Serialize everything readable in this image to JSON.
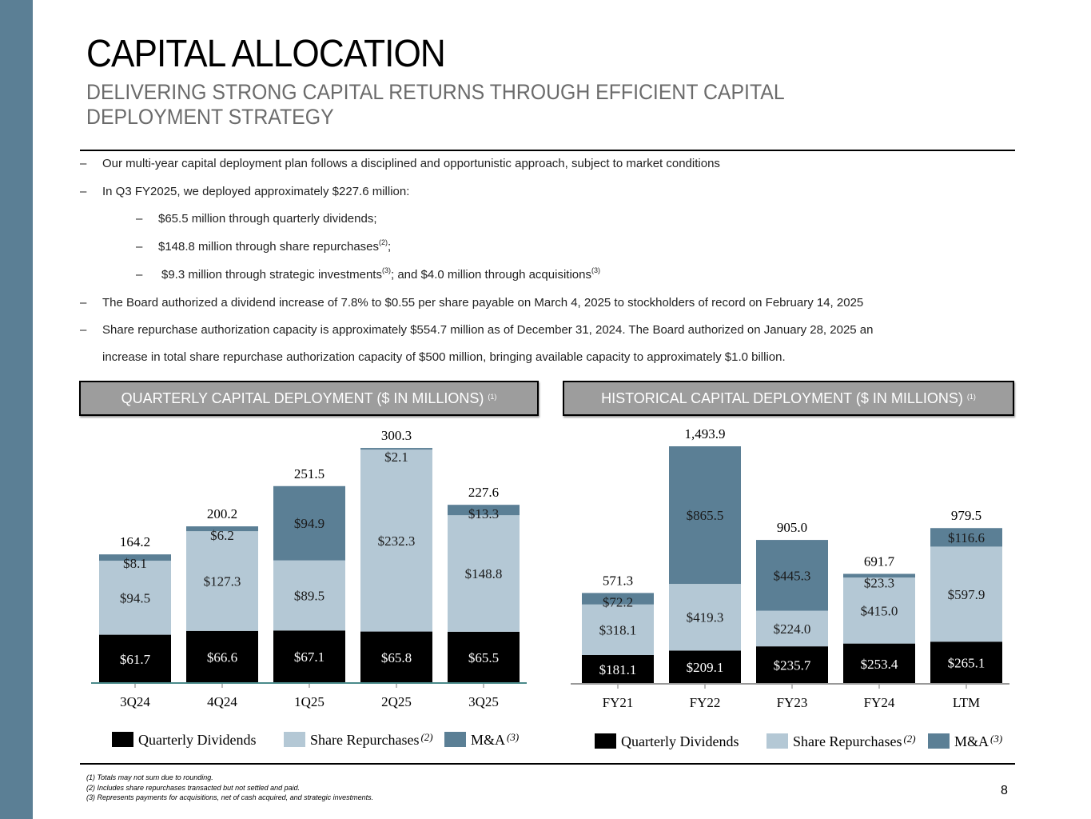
{
  "title": "CAPITAL ALLOCATION",
  "subtitle": "DELIVERING STRONG CAPITAL RETURNS THROUGH EFFICIENT CAPITAL DEPLOYMENT STRATEGY",
  "colors": {
    "sidebar": "#5b7f95",
    "dividends": "#000000",
    "repurchases": "#b4c8d5",
    "ma": "#5b7f95",
    "panel_header": "#9d9d9d"
  },
  "bullets": [
    {
      "dash": "–",
      "text": "Our multi-year capital deployment plan follows a disciplined and opportunistic approach, subject to market conditions"
    },
    {
      "dash": "–",
      "text": "In Q3 FY2025, we deployed approximately $227.6 million:"
    },
    {
      "dash": "–",
      "text": "$65.5 million through quarterly dividends;"
    },
    {
      "dash": "–",
      "text": "$148.8 million through share repurchases",
      "sup": "(2)",
      "after": ";"
    },
    {
      "dash": "–",
      "text": "$9.3 million through strategic investments",
      "sup": "(3)",
      "after": "; and $4.0 million through acquisitions",
      "sup2": "(3)"
    },
    {
      "dash": "–",
      "text": "The Board authorized a dividend increase of 7.8% to $0.55 per share payable on March 4, 2025 to stockholders of record on February 14, 2025"
    },
    {
      "dash": "–",
      "text": "Share repurchase authorization capacity is approximately $554.7 million as of December 31, 2024. The Board authorized on January 28, 2025 an",
      "cont": "increase in total share repurchase authorization capacity of $500 million, bringing available capacity to approximately $1.0 billion."
    }
  ],
  "panels": {
    "quarterly": {
      "title": "QUARTERLY CAPITAL DEPLOYMENT ($ IN MILLIONS)",
      "sup": "(1)"
    },
    "historical": {
      "title": "HISTORICAL CAPITAL DEPLOYMENT ($ IN MILLIONS)",
      "sup": "(1)"
    }
  },
  "chart_data": [
    {
      "type": "bar",
      "stacked": true,
      "title": "QUARTERLY CAPITAL DEPLOYMENT ($ IN MILLIONS) (1)",
      "categories": [
        "3Q24",
        "4Q24",
        "1Q25",
        "2Q25",
        "3Q25"
      ],
      "series": [
        {
          "name": "Quarterly Dividends",
          "labels": [
            "$61.7",
            "$66.6",
            "$67.1",
            "$65.8",
            "$65.5"
          ],
          "values": [
            61.7,
            66.6,
            67.1,
            65.8,
            65.5
          ]
        },
        {
          "name": "Share Repurchases",
          "sup": "(2)",
          "labels": [
            "$94.5",
            "$127.3",
            "$89.5",
            "$232.3",
            "$148.8"
          ],
          "values": [
            94.5,
            127.3,
            89.5,
            232.3,
            148.8
          ]
        },
        {
          "name": "M&A",
          "sup": "(3)",
          "labels": [
            "$8.1",
            "$6.2",
            "$94.9",
            "$2.1",
            "$13.3"
          ],
          "values": [
            8.1,
            6.2,
            94.9,
            2.1,
            13.3
          ]
        }
      ],
      "totals": [
        "164.2",
        "200.2",
        "251.5",
        "300.3",
        "227.6"
      ],
      "ylim": [
        0,
        300.3
      ],
      "grid": false,
      "legend": "bottom"
    },
    {
      "type": "bar",
      "stacked": true,
      "title": "HISTORICAL CAPITAL DEPLOYMENT ($ IN MILLIONS) (1)",
      "categories": [
        "FY21",
        "FY22",
        "FY23",
        "FY24",
        "LTM"
      ],
      "series": [
        {
          "name": "Quarterly Dividends",
          "labels": [
            "$181.1",
            "$209.1",
            "$235.7",
            "$253.4",
            "$265.1"
          ],
          "values": [
            181.1,
            209.1,
            235.7,
            253.4,
            265.1
          ]
        },
        {
          "name": "Share Repurchases",
          "sup": "(2)",
          "labels": [
            "$318.1",
            "$419.3",
            "$224.0",
            "$415.0",
            "$597.9"
          ],
          "values": [
            318.1,
            419.3,
            224.0,
            415.0,
            597.9
          ]
        },
        {
          "name": "M&A",
          "sup": "(3)",
          "labels": [
            "$72.2",
            "$865.5",
            "$445.3",
            "$23.3",
            "$116.6"
          ],
          "values": [
            72.2,
            865.5,
            445.3,
            23.3,
            116.6
          ]
        }
      ],
      "totals": [
        "571.3",
        "1,493.9",
        "905.0",
        "691.7",
        "979.5"
      ],
      "ylim": [
        0,
        1493.9
      ],
      "grid": false,
      "legend": "bottom"
    }
  ],
  "footnotes": [
    "(1) Totals may not sum due to rounding.",
    "(2) Includes share repurchases transacted but not settled and paid.",
    "(3) Represents payments for acquisitions, net of cash acquired, and strategic investments."
  ],
  "page_number": "8"
}
